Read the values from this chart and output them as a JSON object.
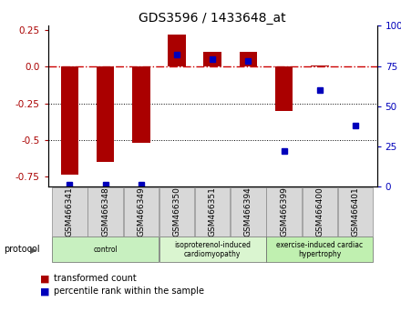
{
  "title": "GDS3596 / 1433648_at",
  "samples": [
    "GSM466341",
    "GSM466348",
    "GSM466349",
    "GSM466350",
    "GSM466351",
    "GSM466394",
    "GSM466399",
    "GSM466400",
    "GSM466401"
  ],
  "red_values": [
    -0.74,
    -0.65,
    -0.52,
    0.22,
    0.1,
    0.1,
    -0.3,
    0.01,
    0.0
  ],
  "blue_values": [
    1.5,
    1.5,
    1.5,
    82.0,
    79.0,
    78.0,
    22.0,
    60.0,
    38.0
  ],
  "groups": [
    {
      "label": "control",
      "start": 0,
      "end": 3,
      "color": "#c8f0c0"
    },
    {
      "label": "isoproterenol-induced\ncardiomyopathy",
      "start": 3,
      "end": 6,
      "color": "#daf5d0"
    },
    {
      "label": "exercise-induced cardiac\nhypertrophy",
      "start": 6,
      "end": 9,
      "color": "#c0f0b0"
    }
  ],
  "ylim_left": [
    -0.82,
    0.28
  ],
  "ylim_right": [
    0,
    100
  ],
  "yticks_left": [
    -0.75,
    -0.5,
    -0.25,
    0.0,
    0.25
  ],
  "yticks_right": [
    0,
    25,
    50,
    75,
    100
  ],
  "red_color": "#aa0000",
  "blue_color": "#0000bb",
  "dashed_color": "#cc0000",
  "bar_width": 0.5,
  "blue_marker_size": 4,
  "tick_gray_bg": "#d8d8d8"
}
